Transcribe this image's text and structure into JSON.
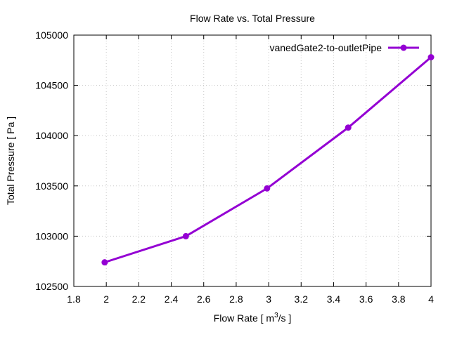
{
  "chart_data": {
    "type": "line",
    "title": "Flow Rate vs. Total Pressure",
    "xlabel": {
      "prefix": "Flow Rate [ m",
      "sup": "3",
      "suffix": "/s ]"
    },
    "ylabel": "Total Pressure [ Pa ]",
    "xlim": [
      1.8,
      4.0
    ],
    "ylim": [
      102500,
      105000
    ],
    "xticks": [
      1.8,
      2.0,
      2.2,
      2.4,
      2.6,
      2.8,
      3.0,
      3.2,
      3.4,
      3.6,
      3.8,
      4.0
    ],
    "xtick_labels": [
      "1.8",
      "2",
      "2.2",
      "2.4",
      "2.6",
      "2.8",
      "3",
      "3.2",
      "3.4",
      "3.6",
      "3.8",
      "4"
    ],
    "yticks": [
      102500,
      103000,
      103500,
      104000,
      104500,
      105000
    ],
    "ytick_labels": [
      "102500",
      "103000",
      "103500",
      "104000",
      "104500",
      "105000"
    ],
    "grid": true,
    "legend_position": "top-right",
    "series": [
      {
        "name": "vanedGate2-to-outletPipe",
        "color": "#9400d3",
        "x": [
          1.99,
          2.49,
          2.99,
          3.49,
          4.0
        ],
        "y": [
          102740,
          103000,
          103475,
          104080,
          104780
        ]
      }
    ]
  }
}
